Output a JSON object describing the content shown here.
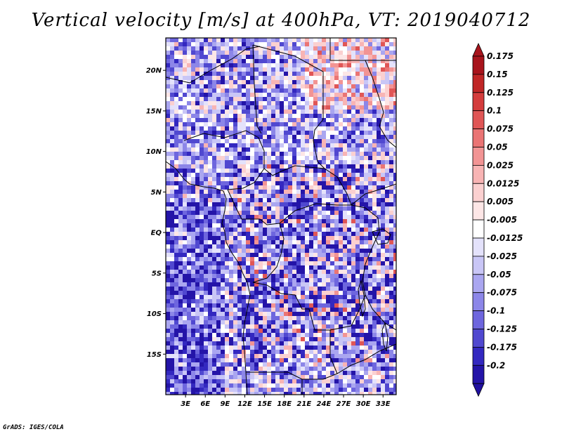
{
  "title": "Vertical velocity [m/s] at 400hPa, VT: 2019040712",
  "credit": "GrADS: IGES/COLA",
  "map": {
    "region": "Central Africa",
    "lon_range": [
      0,
      35
    ],
    "lat_range": [
      -20,
      24
    ],
    "lat_ticks": [
      {
        "value": 20,
        "label": "20N"
      },
      {
        "value": 15,
        "label": "15N"
      },
      {
        "value": 10,
        "label": "10N"
      },
      {
        "value": 5,
        "label": "5N"
      },
      {
        "value": 0,
        "label": "EQ"
      },
      {
        "value": -5,
        "label": "5S"
      },
      {
        "value": -10,
        "label": "10S"
      },
      {
        "value": -15,
        "label": "15S"
      }
    ],
    "lon_ticks": [
      {
        "value": 3,
        "label": "3E"
      },
      {
        "value": 6,
        "label": "6E"
      },
      {
        "value": 9,
        "label": "9E"
      },
      {
        "value": 12,
        "label": "12E"
      },
      {
        "value": 15,
        "label": "15E"
      },
      {
        "value": 18,
        "label": "18E"
      },
      {
        "value": 21,
        "label": "21E"
      },
      {
        "value": 24,
        "label": "24E"
      },
      {
        "value": 27,
        "label": "27E"
      },
      {
        "value": 30,
        "label": "30E"
      },
      {
        "value": 33,
        "label": "33E"
      }
    ]
  },
  "colorbar": {
    "levels": [
      {
        "label": "0.175",
        "color": "#a8141c"
      },
      {
        "label": "0.15",
        "color": "#c02626"
      },
      {
        "label": "0.125",
        "color": "#d43c3c"
      },
      {
        "label": "0.1",
        "color": "#e05656"
      },
      {
        "label": "0.075",
        "color": "#ea7474"
      },
      {
        "label": "0.05",
        "color": "#f29494"
      },
      {
        "label": "0.025",
        "color": "#f8b4b4"
      },
      {
        "label": "0.0125",
        "color": "#fbd0d0"
      },
      {
        "label": "0.005",
        "color": "#fde6e6"
      },
      {
        "label": "-0.005",
        "color": "#ffffff"
      },
      {
        "label": "-0.0125",
        "color": "#e4e2fb"
      },
      {
        "label": "-0.025",
        "color": "#c9c6f6"
      },
      {
        "label": "-0.05",
        "color": "#aaa6f0"
      },
      {
        "label": "-0.075",
        "color": "#8c86e8"
      },
      {
        "label": "-0.1",
        "color": "#6e66de"
      },
      {
        "label": "-0.125",
        "color": "#5048d0"
      },
      {
        "label": "-0.175",
        "color": "#3328c0"
      },
      {
        "label": "-0.2",
        "color": "#2414a8"
      }
    ],
    "top_arrow_color": "#a8141c",
    "bottom_arrow_color": "#2010a0"
  }
}
